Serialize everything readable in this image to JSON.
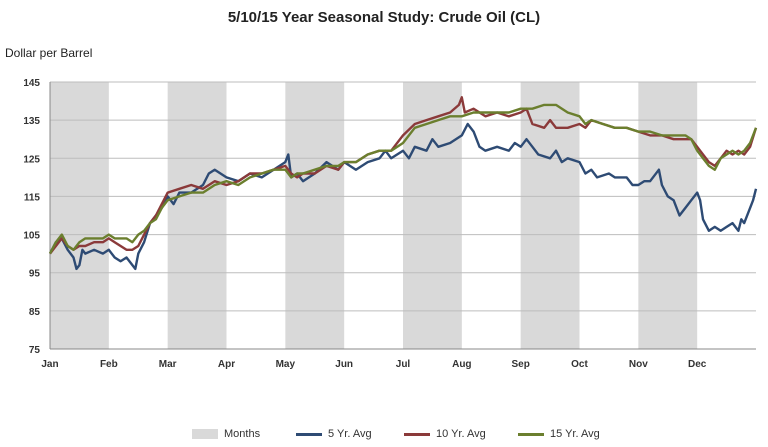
{
  "chart_data": {
    "type": "line",
    "title": "5/10/15 Year Seasonal Study: Crude Oil (CL)",
    "ylabel": "Dollar per Barrel",
    "xlabel": "",
    "ylim": [
      75,
      145
    ],
    "yticks": [
      75,
      85,
      95,
      105,
      115,
      125,
      135,
      145
    ],
    "xlim": [
      0,
      12
    ],
    "months": [
      "Jan",
      "Feb",
      "Mar",
      "Apr",
      "May",
      "Jun",
      "Jul",
      "Aug",
      "Sep",
      "Oct",
      "Nov",
      "Dec"
    ],
    "shaded_months_label": "Months",
    "shaded_month_indices": [
      0,
      2,
      4,
      6,
      8,
      10
    ],
    "grid": true,
    "legend_position": "bottom",
    "series": [
      {
        "name": "5 Yr. Avg",
        "color": "#2e4b74",
        "points": [
          [
            0,
            100
          ],
          [
            0.1,
            103
          ],
          [
            0.2,
            104
          ],
          [
            0.3,
            101
          ],
          [
            0.4,
            99
          ],
          [
            0.45,
            96
          ],
          [
            0.5,
            97
          ],
          [
            0.55,
            101
          ],
          [
            0.6,
            100
          ],
          [
            0.75,
            101
          ],
          [
            0.9,
            100
          ],
          [
            1.0,
            101
          ],
          [
            1.1,
            99
          ],
          [
            1.2,
            98
          ],
          [
            1.3,
            99
          ],
          [
            1.4,
            97
          ],
          [
            1.45,
            96
          ],
          [
            1.5,
            100
          ],
          [
            1.6,
            103
          ],
          [
            1.7,
            108
          ],
          [
            1.8,
            110
          ],
          [
            1.9,
            112
          ],
          [
            2.0,
            115
          ],
          [
            2.1,
            113
          ],
          [
            2.2,
            116
          ],
          [
            2.4,
            116
          ],
          [
            2.6,
            118
          ],
          [
            2.7,
            121
          ],
          [
            2.8,
            122
          ],
          [
            3.0,
            120
          ],
          [
            3.2,
            119
          ],
          [
            3.4,
            121
          ],
          [
            3.6,
            120
          ],
          [
            3.8,
            122
          ],
          [
            4.0,
            124
          ],
          [
            4.05,
            126
          ],
          [
            4.1,
            120
          ],
          [
            4.2,
            121
          ],
          [
            4.3,
            119
          ],
          [
            4.5,
            121
          ],
          [
            4.7,
            124
          ],
          [
            4.9,
            122
          ],
          [
            5.0,
            124
          ],
          [
            5.2,
            122
          ],
          [
            5.4,
            124
          ],
          [
            5.6,
            125
          ],
          [
            5.7,
            127
          ],
          [
            5.8,
            125
          ],
          [
            5.9,
            126
          ],
          [
            6.0,
            127
          ],
          [
            6.1,
            125
          ],
          [
            6.2,
            128
          ],
          [
            6.4,
            127
          ],
          [
            6.5,
            130
          ],
          [
            6.6,
            128
          ],
          [
            6.8,
            129
          ],
          [
            7.0,
            131
          ],
          [
            7.1,
            134
          ],
          [
            7.2,
            132
          ],
          [
            7.3,
            128
          ],
          [
            7.4,
            127
          ],
          [
            7.6,
            128
          ],
          [
            7.8,
            127
          ],
          [
            7.9,
            129
          ],
          [
            8.0,
            128
          ],
          [
            8.1,
            130
          ],
          [
            8.2,
            128
          ],
          [
            8.3,
            126
          ],
          [
            8.5,
            125
          ],
          [
            8.6,
            127
          ],
          [
            8.7,
            124
          ],
          [
            8.8,
            125
          ],
          [
            9.0,
            124
          ],
          [
            9.1,
            121
          ],
          [
            9.2,
            122
          ],
          [
            9.3,
            120
          ],
          [
            9.5,
            121
          ],
          [
            9.6,
            120
          ],
          [
            9.8,
            120
          ],
          [
            9.9,
            118
          ],
          [
            10.0,
            118
          ],
          [
            10.1,
            119
          ],
          [
            10.2,
            119
          ],
          [
            10.35,
            122
          ],
          [
            10.4,
            118
          ],
          [
            10.5,
            115
          ],
          [
            10.6,
            114
          ],
          [
            10.7,
            110
          ],
          [
            10.8,
            112
          ],
          [
            10.9,
            114
          ],
          [
            11.0,
            116
          ],
          [
            11.05,
            114
          ],
          [
            11.1,
            109
          ],
          [
            11.2,
            106
          ],
          [
            11.3,
            107
          ],
          [
            11.4,
            106
          ],
          [
            11.5,
            107
          ],
          [
            11.6,
            108
          ],
          [
            11.7,
            106
          ],
          [
            11.75,
            109
          ],
          [
            11.8,
            108
          ],
          [
            11.9,
            112
          ],
          [
            11.95,
            114
          ],
          [
            12.0,
            117
          ]
        ]
      },
      {
        "name": "10 Yr. Avg",
        "color": "#8b3a3a",
        "points": [
          [
            0,
            100
          ],
          [
            0.1,
            102
          ],
          [
            0.2,
            104
          ],
          [
            0.3,
            102
          ],
          [
            0.4,
            101
          ],
          [
            0.5,
            102
          ],
          [
            0.6,
            102
          ],
          [
            0.75,
            103
          ],
          [
            0.9,
            103
          ],
          [
            1.0,
            104
          ],
          [
            1.1,
            103
          ],
          [
            1.2,
            102
          ],
          [
            1.3,
            101
          ],
          [
            1.4,
            101
          ],
          [
            1.5,
            102
          ],
          [
            1.6,
            105
          ],
          [
            1.7,
            108
          ],
          [
            1.8,
            110
          ],
          [
            1.9,
            113
          ],
          [
            2.0,
            116
          ],
          [
            2.2,
            117
          ],
          [
            2.4,
            118
          ],
          [
            2.6,
            117
          ],
          [
            2.8,
            119
          ],
          [
            3.0,
            118
          ],
          [
            3.2,
            119
          ],
          [
            3.4,
            121
          ],
          [
            3.6,
            121
          ],
          [
            3.8,
            122
          ],
          [
            4.0,
            123
          ],
          [
            4.1,
            121
          ],
          [
            4.2,
            120
          ],
          [
            4.3,
            121
          ],
          [
            4.5,
            121
          ],
          [
            4.7,
            123
          ],
          [
            4.9,
            122
          ],
          [
            5.0,
            124
          ],
          [
            5.2,
            124
          ],
          [
            5.4,
            126
          ],
          [
            5.6,
            127
          ],
          [
            5.8,
            127
          ],
          [
            6.0,
            131
          ],
          [
            6.2,
            134
          ],
          [
            6.4,
            135
          ],
          [
            6.6,
            136
          ],
          [
            6.8,
            137
          ],
          [
            6.95,
            139
          ],
          [
            7.0,
            141
          ],
          [
            7.05,
            137
          ],
          [
            7.2,
            138
          ],
          [
            7.4,
            136
          ],
          [
            7.6,
            137
          ],
          [
            7.8,
            136
          ],
          [
            8.0,
            137
          ],
          [
            8.1,
            138
          ],
          [
            8.2,
            134
          ],
          [
            8.4,
            133
          ],
          [
            8.5,
            135
          ],
          [
            8.6,
            133
          ],
          [
            8.8,
            133
          ],
          [
            9.0,
            134
          ],
          [
            9.1,
            133
          ],
          [
            9.2,
            135
          ],
          [
            9.4,
            134
          ],
          [
            9.6,
            133
          ],
          [
            9.8,
            133
          ],
          [
            10.0,
            132
          ],
          [
            10.2,
            131
          ],
          [
            10.4,
            131
          ],
          [
            10.6,
            130
          ],
          [
            10.8,
            130
          ],
          [
            10.9,
            130
          ],
          [
            11.0,
            128
          ],
          [
            11.1,
            126
          ],
          [
            11.2,
            124
          ],
          [
            11.3,
            123
          ],
          [
            11.4,
            125
          ],
          [
            11.5,
            127
          ],
          [
            11.6,
            126
          ],
          [
            11.7,
            127
          ],
          [
            11.8,
            126
          ],
          [
            11.9,
            128
          ],
          [
            12.0,
            133
          ]
        ]
      },
      {
        "name": "15 Yr. Avg",
        "color": "#6b7f2e",
        "points": [
          [
            0,
            100
          ],
          [
            0.1,
            103
          ],
          [
            0.2,
            105
          ],
          [
            0.3,
            102
          ],
          [
            0.4,
            101
          ],
          [
            0.5,
            103
          ],
          [
            0.6,
            104
          ],
          [
            0.75,
            104
          ],
          [
            0.9,
            104
          ],
          [
            1.0,
            105
          ],
          [
            1.1,
            104
          ],
          [
            1.2,
            104
          ],
          [
            1.3,
            104
          ],
          [
            1.4,
            103
          ],
          [
            1.5,
            105
          ],
          [
            1.6,
            106
          ],
          [
            1.7,
            108
          ],
          [
            1.8,
            109
          ],
          [
            1.9,
            112
          ],
          [
            2.0,
            114
          ],
          [
            2.2,
            115
          ],
          [
            2.4,
            116
          ],
          [
            2.6,
            116
          ],
          [
            2.8,
            118
          ],
          [
            3.0,
            119
          ],
          [
            3.2,
            118
          ],
          [
            3.4,
            120
          ],
          [
            3.6,
            121
          ],
          [
            3.8,
            122
          ],
          [
            4.0,
            122
          ],
          [
            4.1,
            120
          ],
          [
            4.2,
            121
          ],
          [
            4.3,
            121
          ],
          [
            4.5,
            122
          ],
          [
            4.7,
            123
          ],
          [
            4.9,
            123
          ],
          [
            5.0,
            124
          ],
          [
            5.2,
            124
          ],
          [
            5.4,
            126
          ],
          [
            5.6,
            127
          ],
          [
            5.8,
            127
          ],
          [
            6.0,
            129
          ],
          [
            6.2,
            133
          ],
          [
            6.4,
            134
          ],
          [
            6.6,
            135
          ],
          [
            6.8,
            136
          ],
          [
            7.0,
            136
          ],
          [
            7.2,
            137
          ],
          [
            7.4,
            137
          ],
          [
            7.6,
            137
          ],
          [
            7.8,
            137
          ],
          [
            8.0,
            138
          ],
          [
            8.2,
            138
          ],
          [
            8.4,
            139
          ],
          [
            8.6,
            139
          ],
          [
            8.8,
            137
          ],
          [
            9.0,
            136
          ],
          [
            9.1,
            134
          ],
          [
            9.2,
            135
          ],
          [
            9.4,
            134
          ],
          [
            9.6,
            133
          ],
          [
            9.8,
            133
          ],
          [
            10.0,
            132
          ],
          [
            10.2,
            132
          ],
          [
            10.4,
            131
          ],
          [
            10.6,
            131
          ],
          [
            10.8,
            131
          ],
          [
            10.9,
            130
          ],
          [
            11.0,
            127
          ],
          [
            11.1,
            125
          ],
          [
            11.2,
            123
          ],
          [
            11.3,
            122
          ],
          [
            11.4,
            125
          ],
          [
            11.5,
            126
          ],
          [
            11.6,
            127
          ],
          [
            11.7,
            126
          ],
          [
            11.8,
            127
          ],
          [
            11.9,
            129
          ],
          [
            12.0,
            133
          ]
        ]
      }
    ]
  },
  "legend": {
    "months_label": "Months",
    "s5": "5 Yr. Avg",
    "s10": "10 Yr. Avg",
    "s15": "15 Yr. Avg"
  }
}
